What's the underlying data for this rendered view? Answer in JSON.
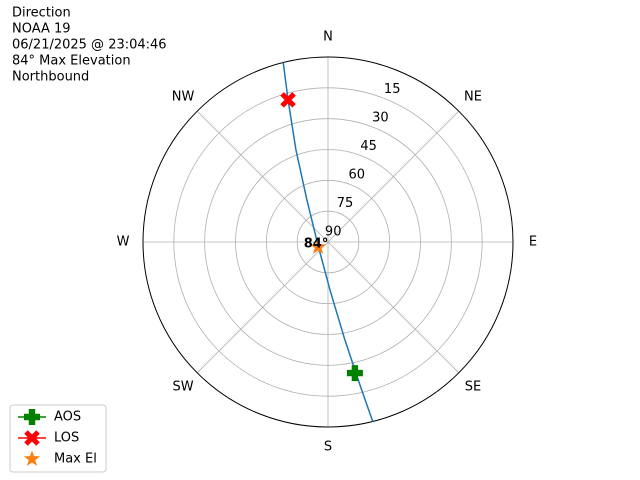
{
  "chart_data": {
    "type": "polar",
    "title_lines": [
      "Direction",
      "NOAA 19",
      "06/21/2025 @ 23:04:46",
      "84° Max Elevation",
      "Northbound"
    ],
    "theta_zero": "N",
    "theta_direction": "clockwise",
    "xticks": [
      {
        "value": 0,
        "label": "N"
      },
      {
        "value": 45,
        "label": "NE"
      },
      {
        "value": 90,
        "label": "E"
      },
      {
        "value": 135,
        "label": "SE"
      },
      {
        "value": 180,
        "label": "S"
      },
      {
        "value": 225,
        "label": "SW"
      },
      {
        "value": 270,
        "label": "W"
      },
      {
        "value": 315,
        "label": "NW"
      }
    ],
    "ylim": [
      90,
      0
    ],
    "yticks": [
      15,
      30,
      45,
      60,
      75,
      90
    ],
    "grid": true,
    "legend": "lower left",
    "series": [
      {
        "color": "#1f77b4",
        "marker": "line",
        "x": [
          166,
          167.4,
          170.2,
          177.6,
          253.3,
          333.4,
          340.8,
          344.3,
          346
        ],
        "values": [
          0,
          18.7,
          41.6,
          66.6,
          84.9,
          67.1,
          42.6,
          18.2,
          0
        ]
      },
      {
        "name": "AOS",
        "color": "#008000",
        "marker": "plus",
        "x": [
          168.4
        ],
        "values": [
          24.9
        ]
      },
      {
        "name": "LOS",
        "color": "#ff0000",
        "marker": "x",
        "x": [
          344.3
        ],
        "values": [
          18.2
        ]
      },
      {
        "name": "Max El",
        "color": "#ff7f0e",
        "marker": "star",
        "x": [
          243.4
        ],
        "values": [
          84.6
        ]
      }
    ],
    "annotation": {
      "text": "84°",
      "x": 243.4,
      "y": 84.6
    }
  }
}
